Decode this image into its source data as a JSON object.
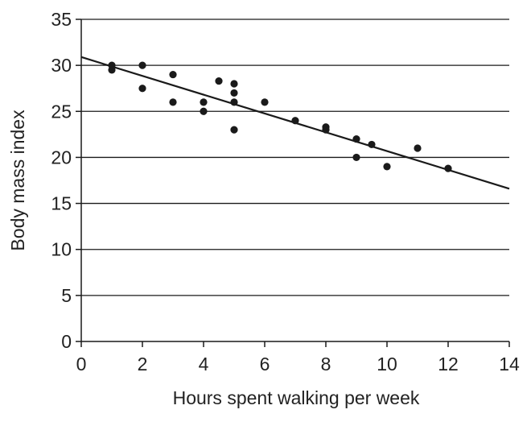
{
  "chart_data": {
    "type": "scatter",
    "title": "",
    "xlabel": "Hours spent walking per week",
    "ylabel": "Body mass index",
    "xlim": [
      0,
      14
    ],
    "ylim": [
      0,
      35
    ],
    "xticks": [
      0,
      2,
      4,
      6,
      8,
      10,
      12,
      14
    ],
    "yticks": [
      0,
      5,
      10,
      15,
      20,
      25,
      30,
      35
    ],
    "xtick_labels": [
      "0",
      "2",
      "4",
      "6",
      "8",
      "10",
      "12",
      "14"
    ],
    "ytick_labels": [
      "0",
      "5",
      "10",
      "15",
      "20",
      "25",
      "30",
      "35"
    ],
    "grid": "horizontal",
    "legend": "none",
    "series": [
      {
        "points": [
          {
            "x": 1,
            "y": 30
          },
          {
            "x": 1,
            "y": 29.5
          },
          {
            "x": 2,
            "y": 30
          },
          {
            "x": 2,
            "y": 27.5
          },
          {
            "x": 3,
            "y": 29
          },
          {
            "x": 3,
            "y": 26
          },
          {
            "x": 4,
            "y": 26
          },
          {
            "x": 4,
            "y": 25
          },
          {
            "x": 4.5,
            "y": 28.3
          },
          {
            "x": 5,
            "y": 28
          },
          {
            "x": 5,
            "y": 27
          },
          {
            "x": 5,
            "y": 26
          },
          {
            "x": 5,
            "y": 23
          },
          {
            "x": 6,
            "y": 26
          },
          {
            "x": 7,
            "y": 24
          },
          {
            "x": 8,
            "y": 23.3
          },
          {
            "x": 8,
            "y": 23
          },
          {
            "x": 9,
            "y": 22
          },
          {
            "x": 9,
            "y": 20
          },
          {
            "x": 9.5,
            "y": 21.4
          },
          {
            "x": 10,
            "y": 19
          },
          {
            "x": 11,
            "y": 21
          },
          {
            "x": 12,
            "y": 18.8
          }
        ]
      }
    ],
    "trend_line": {
      "x": [
        0,
        14
      ],
      "y": [
        30.9,
        16.6
      ]
    },
    "colors": {
      "points": "#1a1a1a",
      "line": "#1a1a1a",
      "grid": "#1a1a1a",
      "text": "#222222",
      "background": "#ffffff"
    }
  }
}
